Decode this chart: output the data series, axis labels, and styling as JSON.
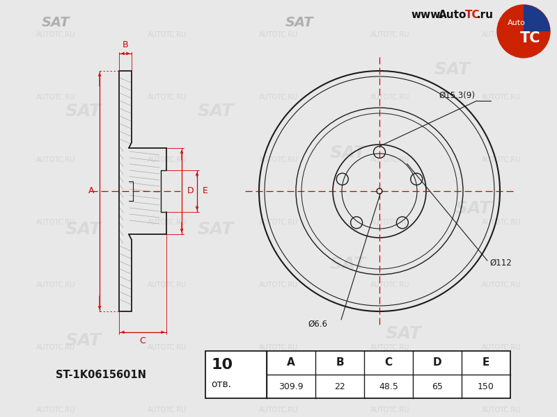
{
  "bg_color": "#e8e8e8",
  "line_color": "#1a1a1a",
  "red_color": "#cc0000",
  "watermark_color": "#cccccc",
  "title_part_number": "ST-1K0615601N",
  "table_headers": [
    "A",
    "B",
    "C",
    "D",
    "E"
  ],
  "table_values": [
    "309.9",
    "22",
    "48.5",
    "65",
    "150"
  ],
  "table_holes": "10",
  "table_holes_label": "отв.",
  "dim_A": "A",
  "dim_B": "B",
  "dim_C": "C",
  "dim_D": "D",
  "dim_E": "E",
  "label_dia_outer": "Ø15.3(9)",
  "label_dia_bolt": "Ø112",
  "label_dia_center": "Ø6.6",
  "website_prefix": "www.",
  "website_auto": "Auto",
  "website_tc": "TC",
  "website_suffix": ".ru",
  "sat_text": "SAT",
  "n_bolt_holes": 5,
  "logo_color": "#cc2200",
  "logo_blue": "#1a3a8a"
}
